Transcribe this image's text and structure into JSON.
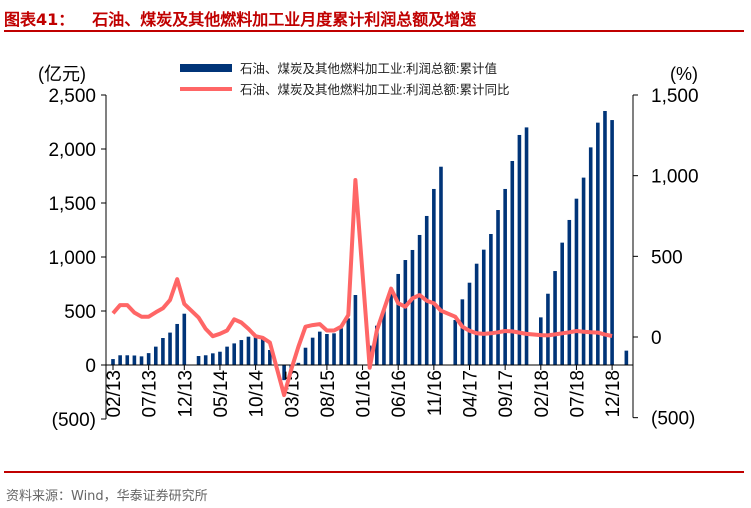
{
  "title": {
    "number": "图表41：",
    "text": "石油、煤炭及其他燃料加工业月度累计利润总额及增速"
  },
  "source": "资料来源：Wind，华泰证券研究所",
  "colors": {
    "bar": "#003478",
    "line": "#ff6666",
    "accent": "#c00000"
  },
  "chart_data": {
    "type": "bar+line",
    "title": "石油、煤炭及其他燃料加工业月度累计利润总额及增速",
    "ylabel_left": "(亿元)",
    "ylabel_right": "(%)",
    "ylim_left": [
      -500,
      2500
    ],
    "ylim_right": [
      -500,
      1500
    ],
    "yticks_left": [
      "2,500",
      "2,000",
      "1,500",
      "1,000",
      "500",
      "0",
      "(500)"
    ],
    "yticks_left_values": [
      2500,
      2000,
      1500,
      1000,
      500,
      0,
      -500
    ],
    "yticks_right": [
      "1,500",
      "1,000",
      "500",
      "0",
      "(500)"
    ],
    "yticks_right_values": [
      1500,
      1000,
      500,
      0,
      -500
    ],
    "start_month": "2013-02",
    "xtick_labels": [
      "02/13",
      "07/13",
      "12/13",
      "05/14",
      "10/14",
      "03/15",
      "08/15",
      "01/16",
      "06/16",
      "11/16",
      "04/17",
      "09/17",
      "02/18",
      "07/18",
      "12/18"
    ],
    "legend_position": "top-center",
    "series": [
      {
        "name": "石油、煤炭及其他燃料加工业:利润总额:累计值",
        "type": "bar",
        "axis": "left",
        "values": [
          55,
          90,
          90,
          88,
          80,
          110,
          170,
          250,
          300,
          380,
          475,
          null,
          83,
          90,
          108,
          123,
          170,
          200,
          231,
          262,
          262,
          240,
          139,
          null,
          -140,
          -80,
          20,
          160,
          253,
          309,
          287,
          293,
          340,
          432,
          648,
          null,
          180,
          364,
          510,
          694,
          843,
          972,
          1065,
          1204,
          1380,
          1630,
          1836,
          null,
          417,
          608,
          762,
          938,
          1068,
          1213,
          1435,
          1630,
          1889,
          2130,
          2200,
          null,
          441,
          660,
          870,
          1133,
          1343,
          1540,
          1735,
          2015,
          2244,
          2352,
          2268,
          null,
          133
        ]
      },
      {
        "name": "石油、煤炭及其他燃料加工业:利润总额:累计同比",
        "type": "line",
        "axis": "right",
        "values": [
          147,
          198,
          198,
          151,
          126,
          126,
          153,
          178,
          229,
          358,
          205,
          null,
          120,
          50,
          5,
          20,
          40,
          110,
          90,
          50,
          5,
          -5,
          -35,
          null,
          -360,
          -200,
          -60,
          64,
          74,
          80,
          40,
          40,
          64,
          136,
          973,
          null,
          -190,
          40,
          170,
          300,
          209,
          188,
          240,
          260,
          225,
          209,
          163,
          null,
          126,
          64,
          39,
          23,
          19,
          23,
          29,
          37,
          35,
          27,
          19,
          null,
          12,
          10,
          16,
          23,
          29,
          37,
          33,
          29,
          27,
          15,
          6,
          null,
          null
        ]
      }
    ]
  }
}
